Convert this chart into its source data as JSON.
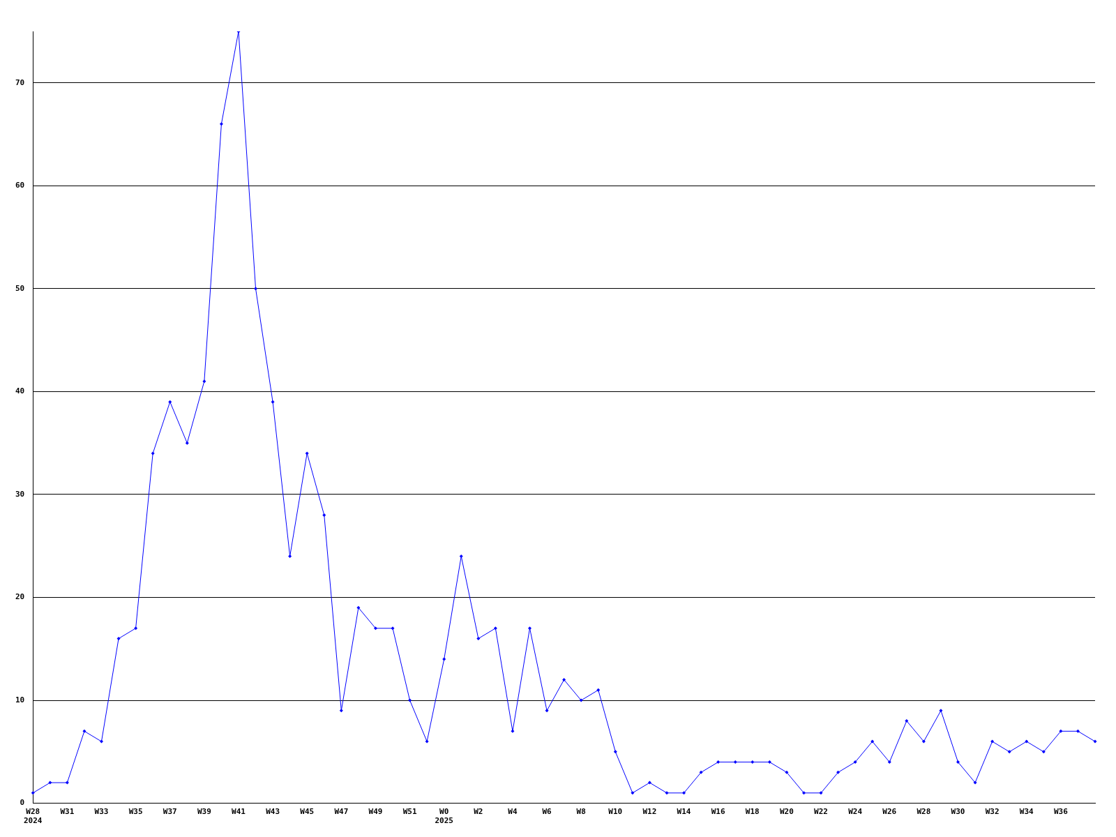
{
  "chart_data": {
    "type": "line",
    "categories": [
      "W28\n2024",
      null,
      "W31",
      null,
      "W33",
      null,
      "W35",
      null,
      "W37",
      null,
      "W39",
      null,
      "W41",
      null,
      "W43",
      null,
      "W45",
      null,
      "W47",
      null,
      "W49",
      null,
      "W51",
      null,
      "W0\n2025",
      null,
      "W2",
      null,
      "W4",
      null,
      "W6",
      null,
      "W8",
      null,
      "W10",
      null,
      "W12",
      null,
      "W14",
      null,
      "W16",
      null,
      "W18",
      null,
      "W20",
      null,
      "W22",
      null,
      "W24",
      null,
      "W26",
      null,
      "W28",
      null,
      "W30",
      null,
      "W32",
      null,
      "W34",
      null,
      "W36",
      null,
      null
    ],
    "series": [
      {
        "color": "#0000ff",
        "values": [
          1,
          2,
          2,
          7,
          6,
          16,
          17,
          34,
          39,
          35,
          41,
          66,
          75,
          50,
          39,
          24,
          34,
          28,
          9,
          19,
          17,
          17,
          10,
          6,
          14,
          24,
          16,
          17,
          7,
          17,
          9,
          12,
          10,
          11,
          5,
          1,
          2,
          1,
          1,
          3,
          4,
          4,
          4,
          4,
          3,
          1,
          1,
          3,
          4,
          6,
          4,
          8,
          6,
          9,
          4,
          2,
          6,
          5,
          6,
          5,
          7,
          7,
          6
        ]
      }
    ],
    "ylim": [
      0,
      75
    ],
    "yticks": [
      0,
      10,
      20,
      30,
      40,
      50,
      60,
      70
    ],
    "grid": "y",
    "legend": false,
    "marker": "diamond",
    "line_style": "solid"
  }
}
